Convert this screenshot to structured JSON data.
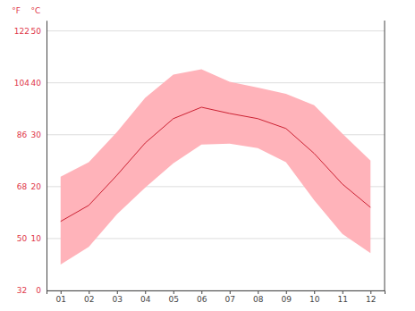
{
  "chart_data": {
    "type": "line",
    "ylabel": "°C",
    "y2label": "°F",
    "categories": [
      "01",
      "02",
      "03",
      "04",
      "05",
      "06",
      "07",
      "08",
      "09",
      "10",
      "11",
      "12"
    ],
    "series": [
      {
        "type": "area",
        "color": "#ffb3ba",
        "values": [
          21.9,
          24.7,
          30.5,
          37.1,
          41.6,
          42.6,
          40.2,
          39.1,
          37.9,
          35.7,
          30.2,
          25.0
        ],
        "low": [
          5.0,
          8.4,
          14.7,
          19.8,
          24.5,
          28.1,
          28.3,
          27.4,
          24.7,
          17.4,
          10.9,
          7.2
        ]
      },
      {
        "type": "line",
        "color": "#cc2233",
        "values": [
          13.3,
          16.4,
          22.2,
          28.4,
          33.1,
          35.3,
          34.1,
          33.1,
          31.2,
          26.4,
          20.5,
          16.0
        ]
      }
    ],
    "ylim": [
      0,
      52
    ],
    "yticks": [
      0,
      10,
      20,
      30,
      40,
      50
    ],
    "y2lim": [
      32,
      125.6
    ],
    "y2ticks": [
      32,
      50,
      68,
      86,
      104,
      122
    ],
    "grid": true
  }
}
